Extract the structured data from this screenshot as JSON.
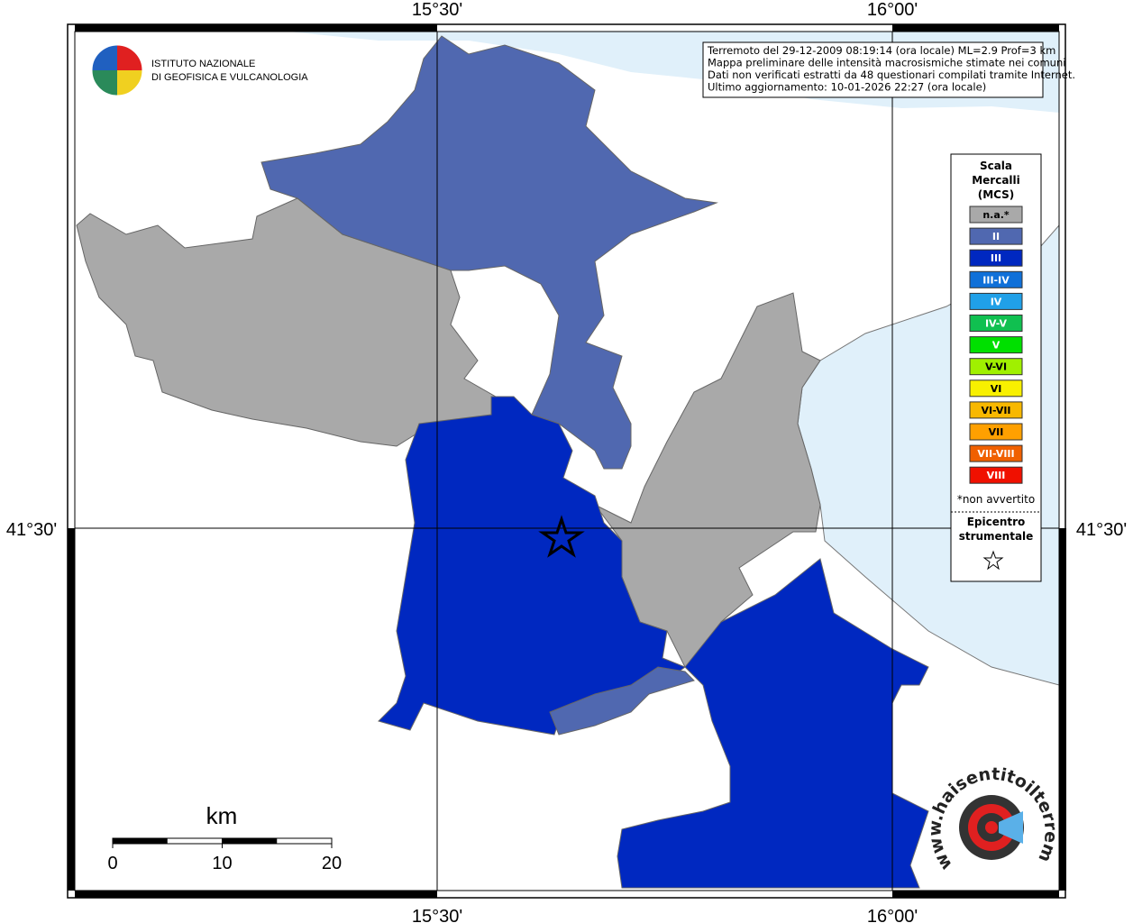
{
  "header": {
    "institute": [
      "ISTITUTO NAZIONALE",
      "DI GEOFISICA E VULCANOLOGIA"
    ],
    "info_lines": [
      "Terremoto del 29-12-2009 08:19:14 (ora locale) ML=2.9 Prof=3 km",
      "Mappa preliminare delle intensità macrosismiche stimate nei comuni",
      "Dati non verificati estratti da 48 questionari compilati tramite Internet.",
      "Ultimo aggiornamento: 10-01-2026 22:27 (ora locale)"
    ]
  },
  "grid_labels": {
    "lon": [
      "15°30'",
      "16°00'"
    ],
    "lat": [
      "41°30'"
    ]
  },
  "legend": {
    "title": [
      "Scala",
      "Mercalli",
      "(MCS)"
    ],
    "items": [
      {
        "label": "n.a.*",
        "color": "#a9a9a9"
      },
      {
        "label": "II",
        "color": "#5068b0"
      },
      {
        "label": "III",
        "color": "#0028c0"
      },
      {
        "label": "III-IV",
        "color": "#1070d8"
      },
      {
        "label": "IV",
        "color": "#20a0e8"
      },
      {
        "label": "IV-V",
        "color": "#10c050"
      },
      {
        "label": "V",
        "color": "#00e000"
      },
      {
        "label": "V-VI",
        "color": "#a0f000"
      },
      {
        "label": "VI",
        "color": "#f8f000"
      },
      {
        "label": "VI-VII",
        "color": "#f8b800"
      },
      {
        "label": "VII",
        "color": "#ffa000"
      },
      {
        "label": "VII-VIII",
        "color": "#f06000"
      },
      {
        "label": "VIII",
        "color": "#f01000"
      }
    ],
    "note": "*non avvertito",
    "epicenter": [
      "Epicentro",
      "strumentale"
    ]
  },
  "scale_bar": {
    "unit": "km",
    "ticks": [
      0,
      10,
      20
    ]
  },
  "site_logo": "www.haisentitoilterremoto.it"
}
